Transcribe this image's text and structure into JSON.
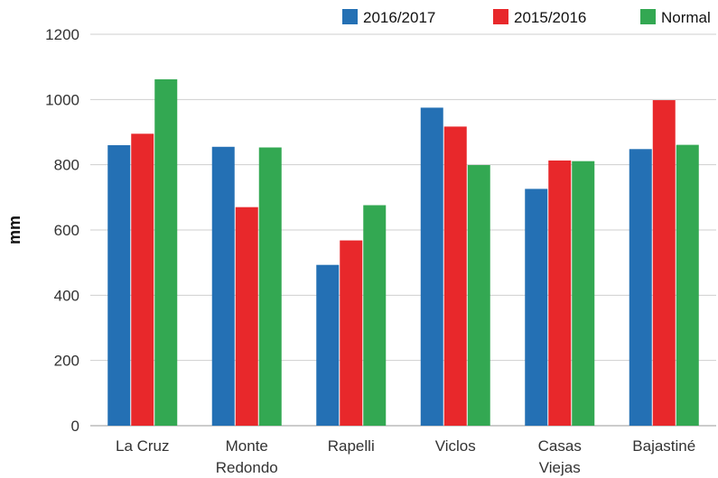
{
  "chart_data": {
    "type": "bar",
    "categories": [
      [
        "La Cruz"
      ],
      [
        "Monte",
        "Redondo"
      ],
      [
        "Rapelli"
      ],
      [
        "Viclos"
      ],
      [
        "Casas",
        "Viejas"
      ],
      [
        "Bajastiné"
      ]
    ],
    "series": [
      {
        "name": "2016/2017",
        "color": "#2470b4",
        "values": [
          860,
          855,
          493,
          975,
          726,
          848
        ]
      },
      {
        "name": "2015/2016",
        "color": "#e8282b",
        "values": [
          895,
          670,
          568,
          917,
          813,
          998
        ]
      },
      {
        "name": "Normal",
        "color": "#33a852",
        "values": [
          1062,
          853,
          676,
          799,
          811,
          861
        ]
      }
    ],
    "ylabel": "mm",
    "ylim": [
      0,
      1200
    ],
    "yticks": [
      0,
      200,
      400,
      600,
      800,
      1000,
      1200
    ],
    "grid": true,
    "legend": "top-right"
  }
}
